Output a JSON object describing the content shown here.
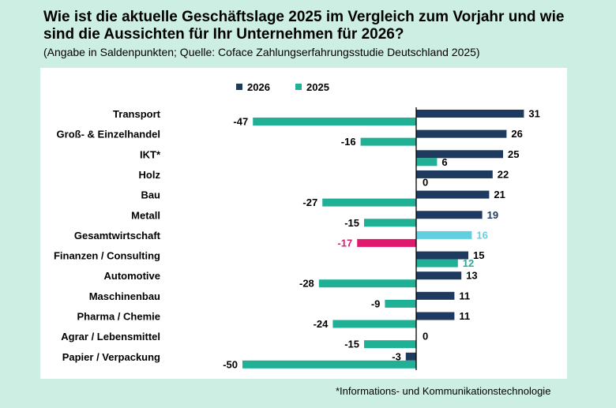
{
  "title": "Wie ist die aktuelle Geschäftslage 2025 im Vergleich zum Vorjahr und wie sind die Aussichten für Ihr Unternehmen für 2026?",
  "subtitle": "(Angabe in Saldenpunkten; Quelle: Coface Zahlungserfahrungsstudie Deutschland 2025)",
  "footnote": "*Informations- und Kommunikationstechnologie",
  "chart_data": {
    "type": "bar",
    "orientation": "horizontal",
    "categories": [
      "Transport",
      "Groß- & Einzelhandel",
      "IKT*",
      "Holz",
      "Bau",
      "Metall",
      "Gesamtwirtschaft",
      "Finanzen / Consulting",
      "Automotive",
      "Maschinenbau",
      "Pharma / Chemie",
      "Agrar / Lebensmittel",
      "Papier / Verpackung"
    ],
    "series": [
      {
        "name": "2026",
        "color": "#1f3a5f",
        "values": [
          31,
          26,
          25,
          22,
          21,
          19,
          16,
          15,
          13,
          11,
          11,
          0,
          -3
        ]
      },
      {
        "name": "2025",
        "color": "#1fb096",
        "values": [
          -47,
          -16,
          6,
          0,
          -27,
          -15,
          -17,
          12,
          -28,
          -9,
          -24,
          -15,
          -50
        ]
      }
    ],
    "highlight": {
      "category": "Gesamtwirtschaft",
      "colors": {
        "2026": "#62cfe0",
        "2025": "#e0186e"
      }
    },
    "label_colors": {
      "Metall": {
        "2026": "#1f3a5f"
      },
      "Gesamtwirtschaft": {
        "2026": "#62cfe0",
        "2025": "#e0186e"
      },
      "Finanzen / Consulting": {
        "2025": "#1fb096"
      }
    },
    "default_label_color": "#000000",
    "xlim": [
      -50,
      31
    ],
    "legend": "top-left",
    "grid": false
  }
}
